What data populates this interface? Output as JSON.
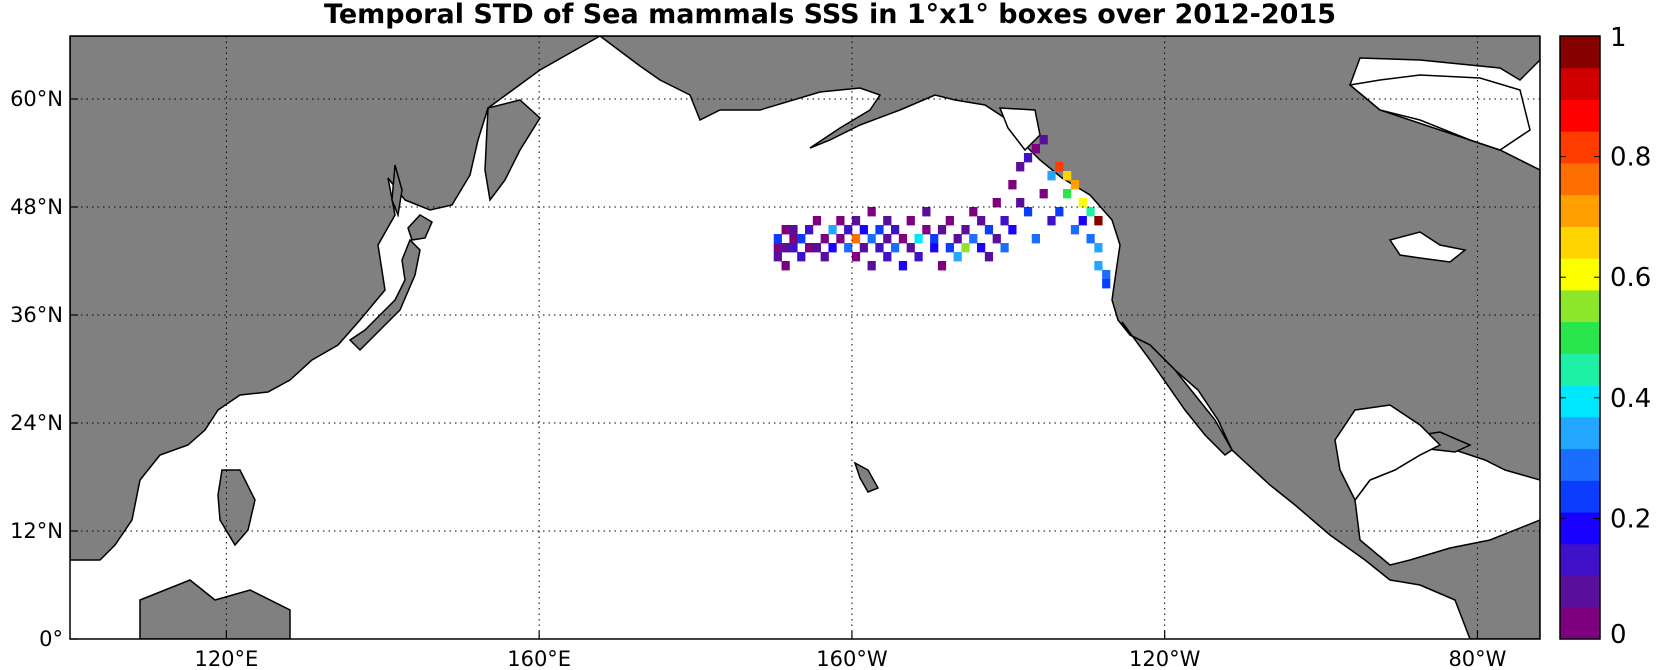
{
  "title": "Temporal STD of Sea mammals SSS in 1°x1° boxes over 2012-2015",
  "colors": {
    "land": "#808080",
    "ocean": "#ffffff",
    "grid": "#000000"
  },
  "map": {
    "projection": "equirectangular",
    "lon_range": [
      100,
      288
    ],
    "lat_range": [
      0,
      67
    ],
    "x_ticks": [
      {
        "lon": 120,
        "label": "120°E"
      },
      {
        "lon": 160,
        "label": "160°E"
      },
      {
        "lon": 200,
        "label": "160°W"
      },
      {
        "lon": 240,
        "label": "120°W"
      },
      {
        "lon": 280,
        "label": "80°W"
      }
    ],
    "y_ticks": [
      {
        "lat": 0,
        "label": "0°"
      },
      {
        "lat": 12,
        "label": "12°N"
      },
      {
        "lat": 24,
        "label": "24°N"
      },
      {
        "lat": 36,
        "label": "36°N"
      },
      {
        "lat": 48,
        "label": "48°N"
      },
      {
        "lat": 60,
        "label": "60°N"
      }
    ],
    "grid": "dotted"
  },
  "colorbar": {
    "min": 0,
    "max": 1,
    "ticks": [
      {
        "value": 0,
        "label": "0"
      },
      {
        "value": 0.2,
        "label": "0.2"
      },
      {
        "value": 0.4,
        "label": "0.4"
      },
      {
        "value": 0.6,
        "label": "0.6"
      },
      {
        "value": 0.8,
        "label": "0.8"
      },
      {
        "value": 1,
        "label": "1"
      }
    ],
    "colors": [
      "#7f007f",
      "#5a0f9c",
      "#3f11c8",
      "#1a00ff",
      "#0b3dff",
      "#1a6dff",
      "#22a6ff",
      "#00e8ff",
      "#1ef0a8",
      "#28e64b",
      "#8ee62c",
      "#fcff00",
      "#ffd400",
      "#ffa000",
      "#ff6e00",
      "#ff3c00",
      "#ff0000",
      "#d00000",
      "#860000"
    ]
  },
  "chart_data": {
    "type": "heatmap",
    "title": "Temporal STD of Sea mammals SSS in 1°x1° boxes over 2012-2015",
    "cell_size_deg": 1,
    "value_range": [
      0,
      1
    ],
    "cells": [
      [
        190,
        43,
        0.03
      ],
      [
        190,
        44,
        0.25
      ],
      [
        190,
        42,
        0.1
      ],
      [
        191,
        43,
        0.07
      ],
      [
        191,
        45,
        0.03
      ],
      [
        191,
        41,
        0.02
      ],
      [
        192,
        43,
        0.15
      ],
      [
        192,
        44,
        0.04
      ],
      [
        192,
        45,
        0.08
      ],
      [
        193,
        42,
        0.12
      ],
      [
        193,
        44,
        0.22
      ],
      [
        194,
        43,
        0.05
      ],
      [
        194,
        45,
        0.11
      ],
      [
        195,
        46,
        0.04
      ],
      [
        195,
        43,
        0.09
      ],
      [
        196,
        44,
        0.02
      ],
      [
        196,
        42,
        0.07
      ],
      [
        197,
        45,
        0.36
      ],
      [
        197,
        43,
        0.18
      ],
      [
        198,
        44,
        0.05
      ],
      [
        198,
        46,
        0.03
      ],
      [
        199,
        43,
        0.27
      ],
      [
        199,
        45,
        0.14
      ],
      [
        200,
        44,
        0.76
      ],
      [
        200,
        42,
        0.05
      ],
      [
        200,
        46,
        0.1
      ],
      [
        201,
        43,
        0.09
      ],
      [
        201,
        45,
        0.2
      ],
      [
        202,
        44,
        0.31
      ],
      [
        202,
        47,
        0.04
      ],
      [
        202,
        41,
        0.06
      ],
      [
        203,
        43,
        0.12
      ],
      [
        203,
        45,
        0.23
      ],
      [
        204,
        44,
        0.06
      ],
      [
        204,
        46,
        0.08
      ],
      [
        204,
        42,
        0.15
      ],
      [
        205,
        43,
        0.3
      ],
      [
        205,
        45,
        0.12
      ],
      [
        206,
        44,
        0.05
      ],
      [
        206,
        41,
        0.21
      ],
      [
        207,
        43,
        0.09
      ],
      [
        207,
        46,
        0.03
      ],
      [
        208,
        44,
        0.4
      ],
      [
        208,
        42,
        0.11
      ],
      [
        209,
        45,
        0.02
      ],
      [
        209,
        47,
        0.06
      ],
      [
        210,
        43,
        0.19
      ],
      [
        210,
        44,
        0.22
      ],
      [
        211,
        41,
        0.03
      ],
      [
        211,
        45,
        0.08
      ],
      [
        212,
        43,
        0.26
      ],
      [
        212,
        46,
        0.04
      ],
      [
        213,
        44,
        0.1
      ],
      [
        213,
        42,
        0.33
      ],
      [
        214,
        43,
        0.55
      ],
      [
        214,
        45,
        0.07
      ],
      [
        215,
        44,
        0.27
      ],
      [
        215,
        47,
        0.05
      ],
      [
        216,
        43,
        0.18
      ],
      [
        216,
        46,
        0.1
      ],
      [
        217,
        42,
        0.06
      ],
      [
        217,
        45,
        0.22
      ],
      [
        218,
        44,
        0.09
      ],
      [
        218,
        48,
        0.04
      ],
      [
        219,
        43,
        0.3
      ],
      [
        219,
        46,
        0.14
      ],
      [
        220,
        50,
        0.05
      ],
      [
        220,
        45,
        0.2
      ],
      [
        221,
        52,
        0.07
      ],
      [
        221,
        48,
        0.1
      ],
      [
        222,
        53,
        0.12
      ],
      [
        222,
        47,
        0.26
      ],
      [
        223,
        54,
        0.04
      ],
      [
        223,
        44,
        0.28
      ],
      [
        224,
        55,
        0.08
      ],
      [
        224,
        49,
        0.05
      ],
      [
        225,
        51,
        0.35
      ],
      [
        225,
        46,
        0.12
      ],
      [
        226,
        52,
        0.8
      ],
      [
        226,
        47,
        0.22
      ],
      [
        227,
        51,
        0.68
      ],
      [
        227,
        49,
        0.5
      ],
      [
        228,
        50,
        0.72
      ],
      [
        228,
        45,
        0.3
      ],
      [
        229,
        48,
        0.62
      ],
      [
        229,
        46,
        0.2
      ],
      [
        230,
        47,
        0.45
      ],
      [
        230,
        44,
        0.28
      ],
      [
        231,
        46,
        0.95
      ],
      [
        231,
        43,
        0.36
      ],
      [
        231,
        41,
        0.32
      ],
      [
        232,
        40,
        0.3
      ],
      [
        232,
        39,
        0.25
      ]
    ]
  }
}
